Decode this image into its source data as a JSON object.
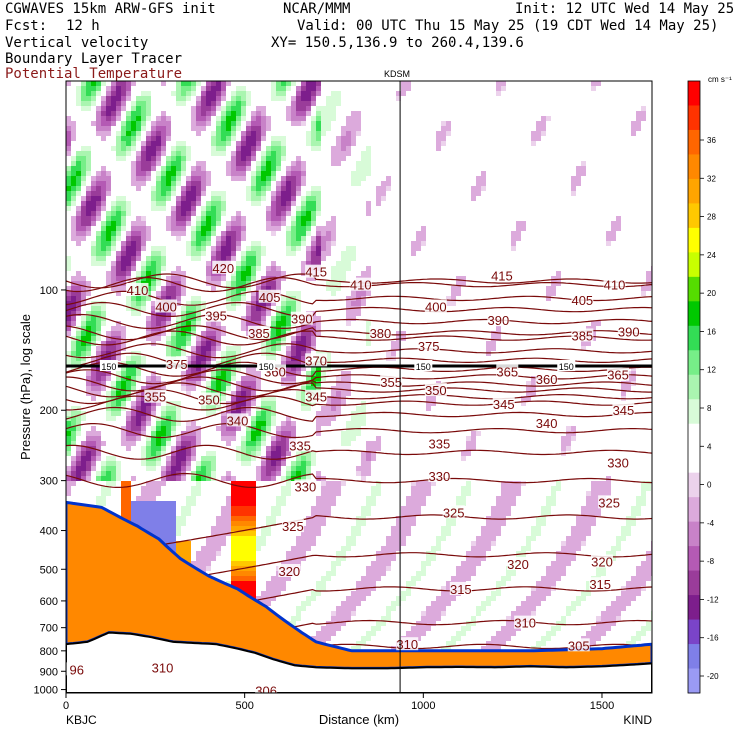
{
  "header": {
    "model": "CGWAVES 15km ARW-GFS init",
    "center": "NCAR/MMM",
    "init": "Init: 12 UTC Wed 14 May 25",
    "fcst_label": "Fcst:",
    "fcst_value": "12 h",
    "valid": "Valid: 00 UTC Thu 15 May 25 (19 CDT Wed 14 May 25)",
    "field1": "Vertical velocity",
    "field2": "Boundary Layer Tracer",
    "field3": "Potential Temperature",
    "xy": "XY= 150.5,136.9 to 260.4,139.6"
  },
  "chart_data": {
    "type": "heatmap",
    "marker_label": "KDSM",
    "marker_x_km": 935,
    "xlabel": "Distance (km)",
    "ylabel": "Pressure (hPa), log scale",
    "x_left_label": "KBJC",
    "x_right_label": "KIND",
    "x_ticks": [
      0,
      500,
      1000,
      1500
    ],
    "xlim": [
      0,
      1640
    ],
    "y_ticks": [
      100,
      200,
      300,
      400,
      500,
      600,
      700,
      800,
      900,
      1000
    ],
    "ylim": [
      1020,
      30
    ],
    "colorbar": {
      "unit": "cm s⁻¹",
      "labels": [
        36,
        32,
        28,
        24,
        20,
        16,
        12,
        8,
        4,
        0,
        -4,
        -8,
        -12,
        -16,
        -20
      ],
      "colors": [
        "#ff0000",
        "#ff3300",
        "#ff6600",
        "#ff8800",
        "#ffa500",
        "#ffc800",
        "#ffff00",
        "#c8ff00",
        "#55dd00",
        "#00c800",
        "#33dd55",
        "#77ee88",
        "#aaf5b0",
        "#d8fbd8",
        "#ffffff",
        "#ffffff",
        "#ecd2ec",
        "#dcaadc",
        "#c882c8",
        "#b45ab4",
        "#9a3c9a",
        "#7d1e8c",
        "#7a44c8",
        "#7f7fe8",
        "#9a9af5"
      ]
    },
    "theta_contours": [
      {
        "label": "420",
        "p": 95
      },
      {
        "label": "415",
        "p": 97
      },
      {
        "label": "410",
        "p": 105
      },
      {
        "label": "405",
        "p": 112
      },
      {
        "label": "400",
        "p": 120
      },
      {
        "label": "395",
        "p": 128
      },
      {
        "label": "390",
        "p": 132
      },
      {
        "label": "385",
        "p": 142
      },
      {
        "label": "380",
        "p": 150
      },
      {
        "label": "375",
        "p": 158
      },
      {
        "label": "370",
        "p": 165
      },
      {
        "label": "365",
        "p": 172
      },
      {
        "label": "360",
        "p": 178
      },
      {
        "label": "355",
        "p": 185
      },
      {
        "label": "350",
        "p": 192
      },
      {
        "label": "345",
        "p": 205
      },
      {
        "label": "340",
        "p": 225
      },
      {
        "label": "335",
        "p": 255
      },
      {
        "label": "330",
        "p": 300
      },
      {
        "label": "325",
        "p": 370
      },
      {
        "label": "320",
        "p": 460
      },
      {
        "label": "315",
        "p": 560
      },
      {
        "label": "310",
        "p": 680
      },
      {
        "label": "305",
        "p": 780
      }
    ],
    "theta_labels": [
      {
        "text": "420",
        "x": 440,
        "p": 88
      },
      {
        "text": "415",
        "x": 700,
        "p": 90
      },
      {
        "text": "415",
        "x": 1220,
        "p": 92
      },
      {
        "text": "410",
        "x": 200,
        "p": 100
      },
      {
        "text": "410",
        "x": 825,
        "p": 97
      },
      {
        "text": "410",
        "x": 1535,
        "p": 97
      },
      {
        "text": "405",
        "x": 570,
        "p": 104
      },
      {
        "text": "405",
        "x": 1445,
        "p": 106
      },
      {
        "text": "400",
        "x": 280,
        "p": 110
      },
      {
        "text": "400",
        "x": 1035,
        "p": 110
      },
      {
        "text": "395",
        "x": 420,
        "p": 116
      },
      {
        "text": "390",
        "x": 660,
        "p": 118
      },
      {
        "text": "390",
        "x": 1210,
        "p": 119
      },
      {
        "text": "390",
        "x": 1575,
        "p": 127
      },
      {
        "text": "385",
        "x": 540,
        "p": 128
      },
      {
        "text": "385",
        "x": 1445,
        "p": 130
      },
      {
        "text": "380",
        "x": 880,
        "p": 128
      },
      {
        "text": "375",
        "x": 1015,
        "p": 138
      },
      {
        "text": "375",
        "x": 310,
        "p": 153
      },
      {
        "text": "370",
        "x": 700,
        "p": 150
      },
      {
        "text": "365",
        "x": 1545,
        "p": 163
      },
      {
        "text": "365",
        "x": 1235,
        "p": 160
      },
      {
        "text": "360",
        "x": 585,
        "p": 160
      },
      {
        "text": "360",
        "x": 1345,
        "p": 167
      },
      {
        "text": "355",
        "x": 910,
        "p": 170
      },
      {
        "text": "355",
        "x": 250,
        "p": 185
      },
      {
        "text": "350",
        "x": 400,
        "p": 188
      },
      {
        "text": "350",
        "x": 1035,
        "p": 178
      },
      {
        "text": "345",
        "x": 700,
        "p": 185
      },
      {
        "text": "345",
        "x": 1225,
        "p": 193
      },
      {
        "text": "345",
        "x": 1560,
        "p": 200
      },
      {
        "text": "340",
        "x": 480,
        "p": 212
      },
      {
        "text": "340",
        "x": 1345,
        "p": 215
      },
      {
        "text": "335",
        "x": 655,
        "p": 245
      },
      {
        "text": "335",
        "x": 1045,
        "p": 242
      },
      {
        "text": "330",
        "x": 1045,
        "p": 292
      },
      {
        "text": "330",
        "x": 670,
        "p": 310
      },
      {
        "text": "330",
        "x": 1545,
        "p": 270
      },
      {
        "text": "325",
        "x": 1085,
        "p": 360
      },
      {
        "text": "325",
        "x": 635,
        "p": 390
      },
      {
        "text": "325",
        "x": 1520,
        "p": 340
      },
      {
        "text": "320",
        "x": 625,
        "p": 505
      },
      {
        "text": "320",
        "x": 1265,
        "p": 485
      },
      {
        "text": "320",
        "x": 1500,
        "p": 478
      },
      {
        "text": "315",
        "x": 1105,
        "p": 560
      },
      {
        "text": "315",
        "x": 1495,
        "p": 545
      },
      {
        "text": "310",
        "x": 1285,
        "p": 680
      },
      {
        "text": "310",
        "x": 955,
        "p": 770
      },
      {
        "text": "310",
        "x": 270,
        "p": 880
      },
      {
        "text": "305",
        "x": 1435,
        "p": 775
      },
      {
        "text": "306",
        "x": 560,
        "p": 1005
      },
      {
        "text": "96",
        "x": 30,
        "p": 890
      }
    ],
    "tropopause_label": "150",
    "tropopause_p": 155
  }
}
